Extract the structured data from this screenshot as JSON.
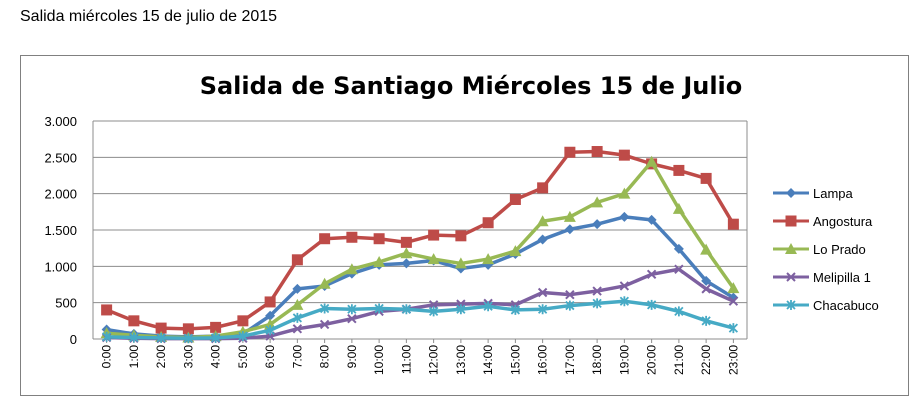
{
  "caption": "Salida miércoles  15 de julio de 2015",
  "chart_data": {
    "type": "line",
    "title": "Salida de Santiago Miércoles 15 de Julio",
    "xlabel": "",
    "ylabel": "",
    "ylim": [
      0,
      3000
    ],
    "yticks": [
      0,
      500,
      1000,
      1500,
      2000,
      2500,
      3000
    ],
    "ytick_labels": [
      "0",
      "500",
      "1.000",
      "1.500",
      "2.000",
      "2.500",
      "3.000"
    ],
    "categories": [
      "0:00",
      "1:00",
      "2:00",
      "3:00",
      "4:00",
      "5:00",
      "6:00",
      "7:00",
      "8:00",
      "9:00",
      "10:00",
      "11:00",
      "12:00",
      "13:00",
      "14:00",
      "15:00",
      "16:00",
      "17:00",
      "18:00",
      "19:00",
      "20:00",
      "21:00",
      "22:00",
      "23:00"
    ],
    "grid": true,
    "legend_position": "right",
    "series": [
      {
        "name": "Lampa",
        "color": "#4a7ebb",
        "marker": "diamond",
        "values": [
          130,
          70,
          40,
          30,
          40,
          70,
          320,
          690,
          730,
          900,
          1020,
          1040,
          1080,
          970,
          1020,
          1170,
          1370,
          1510,
          1580,
          1680,
          1640,
          1240,
          800,
          570
        ]
      },
      {
        "name": "Angostura",
        "color": "#be4b48",
        "marker": "square",
        "values": [
          400,
          250,
          150,
          140,
          160,
          250,
          510,
          1090,
          1380,
          1400,
          1380,
          1330,
          1430,
          1420,
          1600,
          1920,
          2080,
          2570,
          2580,
          2530,
          2410,
          2320,
          2210,
          1580
        ]
      },
      {
        "name": "Lo Prado",
        "color": "#98b954",
        "marker": "triangle",
        "values": [
          80,
          50,
          30,
          20,
          40,
          100,
          200,
          470,
          760,
          960,
          1060,
          1180,
          1100,
          1040,
          1100,
          1210,
          1620,
          1680,
          1880,
          2000,
          2440,
          1790,
          1230,
          700
        ]
      },
      {
        "name": "Melipilla 1",
        "color": "#7d60a0",
        "marker": "x",
        "values": [
          20,
          10,
          5,
          5,
          5,
          10,
          40,
          140,
          200,
          280,
          380,
          410,
          470,
          480,
          490,
          470,
          640,
          610,
          660,
          730,
          890,
          960,
          690,
          520
        ]
      },
      {
        "name": "Chacabuco",
        "color": "#46aac5",
        "marker": "star",
        "values": [
          30,
          20,
          15,
          10,
          15,
          40,
          120,
          290,
          420,
          410,
          420,
          410,
          380,
          410,
          450,
          400,
          410,
          460,
          490,
          520,
          470,
          380,
          250,
          150
        ]
      }
    ]
  }
}
